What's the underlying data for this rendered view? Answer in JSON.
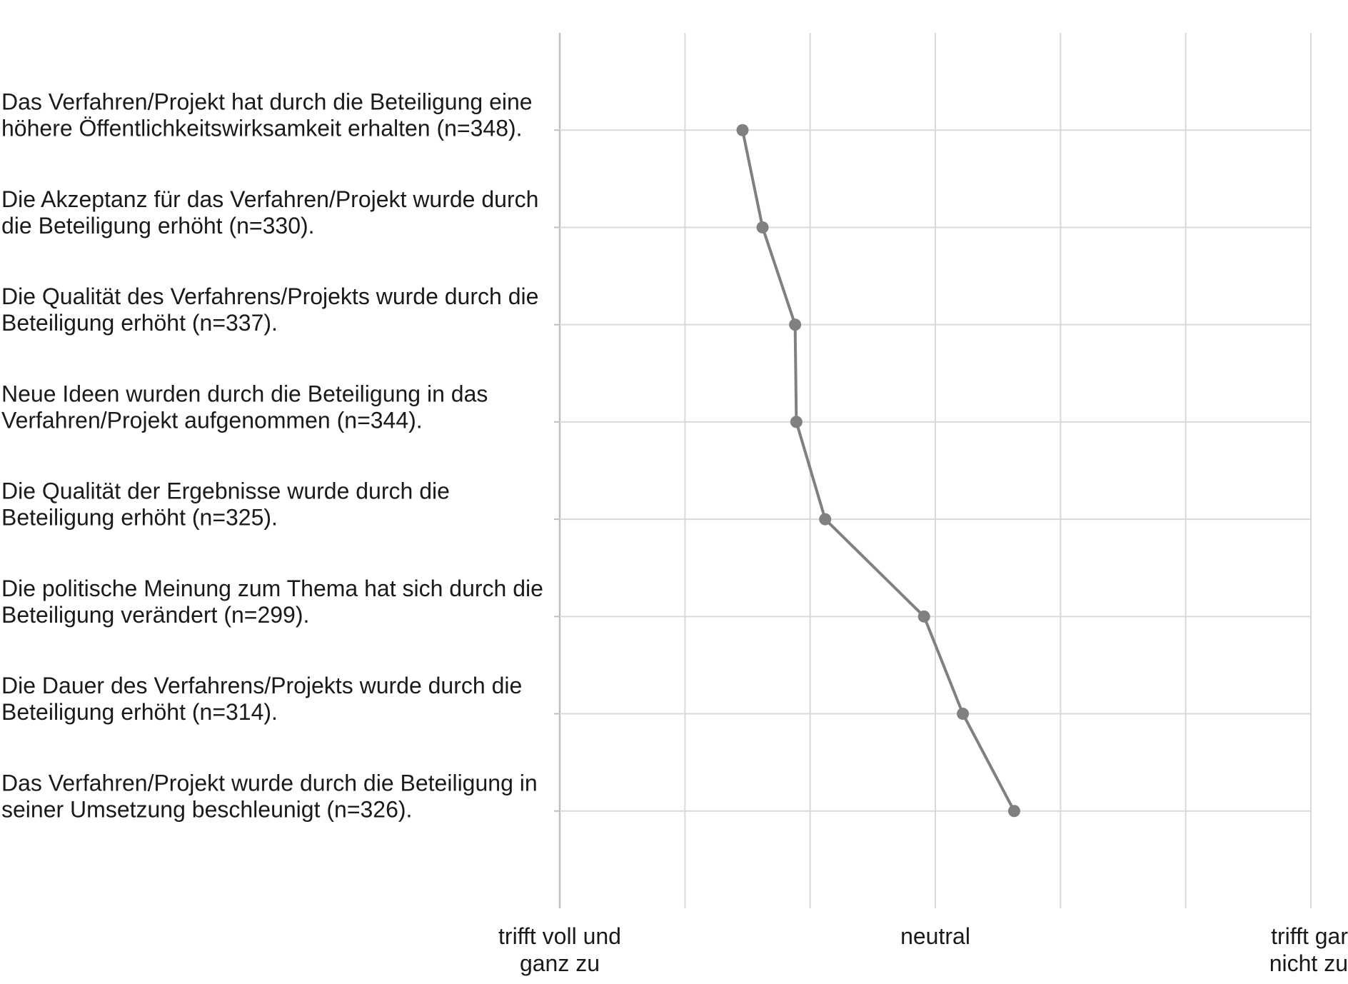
{
  "chart_data": {
    "type": "line",
    "orientation": "horizontal-profile",
    "title": "",
    "xlabel": "",
    "ylabel": "",
    "xlim": [
      1,
      7
    ],
    "x_ticks": [
      {
        "value": 1,
        "lines": [
          "trifft voll und",
          "ganz zu"
        ]
      },
      {
        "value": 4,
        "lines": [
          "neutral"
        ]
      },
      {
        "value": 7,
        "lines": [
          "trifft gar",
          "nicht zu"
        ]
      }
    ],
    "grid": true,
    "categories": [
      {
        "lines": [
          "Das Verfahren/Projekt hat durch die Beteiligung eine",
          "höhere Öffentlichkeitswirksamkeit erhalten (n=348)."
        ],
        "value": 2.46
      },
      {
        "lines": [
          "Die Akzeptanz für das Verfahren/Projekt wurde durch",
          "die Beteiligung erhöht (n=330)."
        ],
        "value": 2.62
      },
      {
        "lines": [
          "Die Qualität des Verfahrens/Projekts wurde durch die",
          "Beteiligung erhöht (n=337)."
        ],
        "value": 2.88
      },
      {
        "lines": [
          "Neue Ideen wurden durch die Beteiligung in das",
          "Verfahren/Projekt aufgenommen (n=344)."
        ],
        "value": 2.89
      },
      {
        "lines": [
          "Die Qualität der Ergebnisse wurde durch die",
          "Beteiligung erhöht (n=325)."
        ],
        "value": 3.12
      },
      {
        "lines": [
          "Die politische Meinung zum Thema hat sich durch die",
          "Beteiligung verändert (n=299)."
        ],
        "value": 3.91
      },
      {
        "lines": [
          "Die Dauer des Verfahrens/Projekts wurde durch die",
          "Beteiligung erhöht (n=314)."
        ],
        "value": 4.22
      },
      {
        "lines": [
          "Das Verfahren/Projekt wurde durch die Beteiligung in",
          "seiner Umsetzung beschleunigt (n=326)."
        ],
        "value": 4.63
      }
    ],
    "colors": {
      "line": "#808080",
      "marker": "#808080",
      "grid": "#d9d9d9",
      "axis": "#bfbfbf"
    }
  }
}
